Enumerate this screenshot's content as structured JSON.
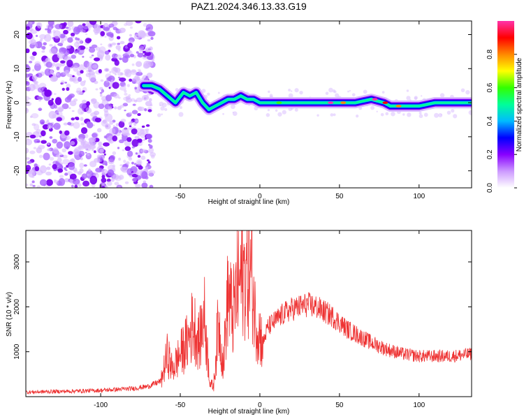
{
  "title": "PAZ1.2024.346.13.33.G19",
  "chart_data": [
    {
      "type": "heatmap",
      "xlabel": "Height of straight line (km)",
      "ylabel": "Frequency (Hz)",
      "xlim": [
        -147,
        133
      ],
      "ylim": [
        -25,
        24
      ],
      "xticks": [
        -100,
        -50,
        0,
        50,
        100
      ],
      "yticks": [
        20,
        10,
        0,
        -10,
        -20
      ],
      "colorbar": {
        "label": "Normalized spectral amplitude",
        "range": [
          0,
          1
        ],
        "ticks": [
          "0.0",
          "0.2",
          "0.4",
          "0.6",
          "0.8"
        ],
        "colors": [
          "#ffffff",
          "#cc99ff",
          "#8800ff",
          "#0000ff",
          "#00bbff",
          "#00ff99",
          "#33ff00",
          "#ffff00",
          "#ff8800",
          "#ff0000",
          "#ff33aa"
        ]
      },
      "noise_region_x": [
        -147,
        -67
      ],
      "ridge": {
        "x": [
          -73,
          -68,
          -63,
          -58,
          -53,
          -48,
          -44,
          -40,
          -36,
          -32,
          -28,
          -24,
          -20,
          -16,
          -12,
          -8,
          -4,
          0,
          10,
          20,
          30,
          40,
          50,
          60,
          70,
          78,
          82,
          90,
          100,
          110,
          120,
          133
        ],
        "y": [
          5,
          5,
          4,
          2,
          0,
          3,
          2,
          3,
          0,
          -2,
          -1,
          0,
          1,
          1,
          2,
          1,
          1,
          0,
          0,
          0,
          0,
          0,
          0,
          0,
          1,
          0,
          -1,
          -1,
          -1,
          0,
          0,
          0
        ]
      }
    },
    {
      "type": "line",
      "xlabel": "Height of straight line (km)",
      "ylabel": "SNR (10 * v/v)",
      "xlim": [
        -147,
        133
      ],
      "ylim": [
        0,
        3700
      ],
      "xticks": [
        -100,
        -50,
        0,
        50,
        100
      ],
      "yticks": [
        1000,
        2000,
        3000
      ],
      "color": "#ee3333",
      "envelope": {
        "x": [
          -147,
          -120,
          -100,
          -80,
          -70,
          -62,
          -58,
          -55,
          -50,
          -45,
          -42,
          -38,
          -35,
          -33,
          -31,
          -29,
          -26,
          -23,
          -20,
          -17,
          -14,
          -11,
          -8,
          -5,
          -3,
          0,
          2,
          5,
          10,
          15,
          20,
          25,
          30,
          35,
          40,
          45,
          50,
          55,
          60,
          70,
          80,
          90,
          100,
          110,
          120,
          133
        ],
        "y": [
          100,
          120,
          140,
          180,
          230,
          350,
          950,
          600,
          950,
          1250,
          1650,
          1200,
          1850,
          1000,
          250,
          250,
          1700,
          700,
          2300,
          1800,
          2450,
          2700,
          2750,
          2700,
          1800,
          1400,
          1200,
          1550,
          1700,
          1850,
          1950,
          2000,
          2050,
          2000,
          1900,
          1800,
          1650,
          1500,
          1400,
          1200,
          1050,
          950,
          900,
          900,
          900,
          950
        ]
      }
    }
  ]
}
